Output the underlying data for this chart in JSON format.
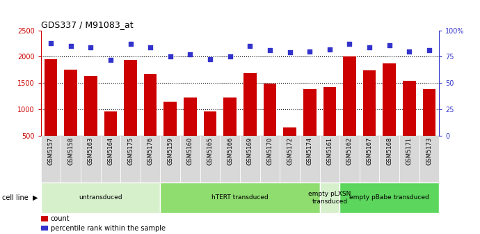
{
  "title": "GDS337 / M91083_at",
  "samples": [
    "GSM5157",
    "GSM5158",
    "GSM5163",
    "GSM5164",
    "GSM5175",
    "GSM5176",
    "GSM5159",
    "GSM5160",
    "GSM5165",
    "GSM5166",
    "GSM5169",
    "GSM5170",
    "GSM5172",
    "GSM5174",
    "GSM5161",
    "GSM5162",
    "GSM5167",
    "GSM5168",
    "GSM5171",
    "GSM5173"
  ],
  "counts": [
    1950,
    1750,
    1630,
    960,
    1940,
    1680,
    1140,
    1220,
    960,
    1220,
    1690,
    1490,
    660,
    1390,
    1420,
    2010,
    1740,
    1870,
    1540,
    1380
  ],
  "percentiles": [
    88,
    85,
    84,
    72,
    87,
    84,
    75,
    77,
    73,
    75,
    85,
    81,
    79,
    80,
    82,
    87,
    84,
    86,
    80,
    81
  ],
  "groups": [
    {
      "label": "untransduced",
      "start": 0,
      "end": 6,
      "color": "#d6f0cb"
    },
    {
      "label": "hTERT transduced",
      "start": 6,
      "end": 14,
      "color": "#8fdc6f"
    },
    {
      "label": "empty pLXSN\ntransduced",
      "start": 14,
      "end": 15,
      "color": "#d6f0cb"
    },
    {
      "label": "empty pBabe transduced",
      "start": 15,
      "end": 20,
      "color": "#5cd65c"
    }
  ],
  "bar_color": "#cc0000",
  "dot_color": "#3333cc",
  "ylim_left": [
    500,
    2500
  ],
  "ylim_right": [
    0,
    100
  ],
  "yticks_left": [
    500,
    1000,
    1500,
    2000,
    2500
  ],
  "yticks_right": [
    0,
    25,
    50,
    75,
    100
  ],
  "yticklabels_right": [
    "0",
    "25",
    "50",
    "75",
    "100%"
  ],
  "grid_values": [
    1000,
    1500,
    2000
  ],
  "xtick_bg": "#d8d8d8"
}
